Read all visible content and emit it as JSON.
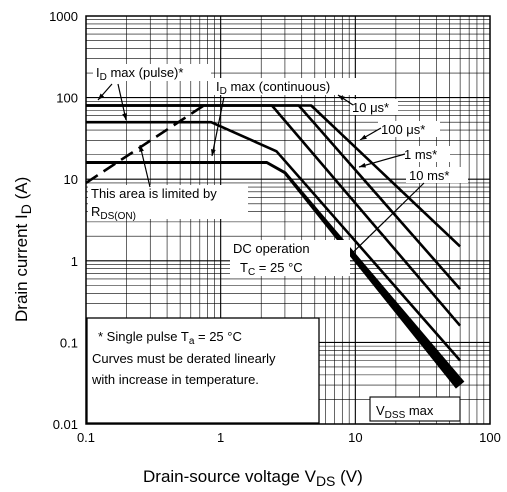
{
  "chart_data": {
    "type": "line",
    "xscale": "log",
    "yscale": "log",
    "xlim": [
      0.1,
      100
    ],
    "ylim": [
      0.01,
      1000
    ],
    "grid": true,
    "x_ticks": [
      "0.1",
      "1",
      "10",
      "100"
    ],
    "y_ticks": [
      "0.01",
      "0.1",
      "1",
      "10",
      "100",
      "1000"
    ],
    "xlabel": {
      "main": "Drain-source voltage",
      "symbol": "V",
      "sub": "DS",
      "unit": "(V)"
    },
    "ylabel": {
      "main": "Drain current",
      "symbol": "I",
      "sub": "D",
      "unit": "(A)"
    },
    "series": [
      {
        "name": "10 μs*",
        "x": [
          0.1,
          4.7,
          60
        ],
        "y": [
          80,
          80,
          1.5
        ]
      },
      {
        "name": "100 μs*",
        "x": [
          0.1,
          3.8,
          60
        ],
        "y": [
          80,
          80,
          0.45
        ]
      },
      {
        "name": "1 ms*",
        "x": [
          0.1,
          2.4,
          60
        ],
        "y": [
          80,
          80,
          0.16
        ]
      },
      {
        "name": "10 ms*",
        "x": [
          0.1,
          0.85,
          2.6,
          60
        ],
        "y": [
          50,
          50,
          22,
          0.06
        ]
      },
      {
        "name": "DC operation",
        "x": [
          0.1,
          2.2,
          3.0,
          60
        ],
        "y": [
          16,
          16,
          12,
          0.03
        ]
      },
      {
        "name": "RDS(ON) limit",
        "x": [
          0.1,
          0.75
        ],
        "y": [
          9,
          80
        ]
      }
    ],
    "annotations": {
      "id_pulse": {
        "pre": "I",
        "sub": "D",
        "post": " max (pulse)*"
      },
      "id_cont": {
        "pre": "I",
        "sub": "D",
        "post": " max (continuous)"
      },
      "t10us": "10 μs*",
      "t100us": "100 μs*",
      "t1ms": "1 ms*",
      "t10ms": "10 ms*",
      "area_line1": "This area is limited by",
      "area_line2": {
        "pre": "R",
        "sub": "DS(ON)"
      },
      "dc_line1": "DC operation",
      "dc_line2": {
        "pre": "T",
        "sub": "C",
        "post": " = 25 °C"
      },
      "note_line1": {
        "pre": "* Single pulse    T",
        "sub": "a",
        "post": " = 25 °C"
      },
      "note_line2": "Curves must be derated linearly",
      "note_line3": "with increase in temperature.",
      "vdss": {
        "pre": "V",
        "sub": "DSS",
        "post": " max"
      }
    }
  }
}
